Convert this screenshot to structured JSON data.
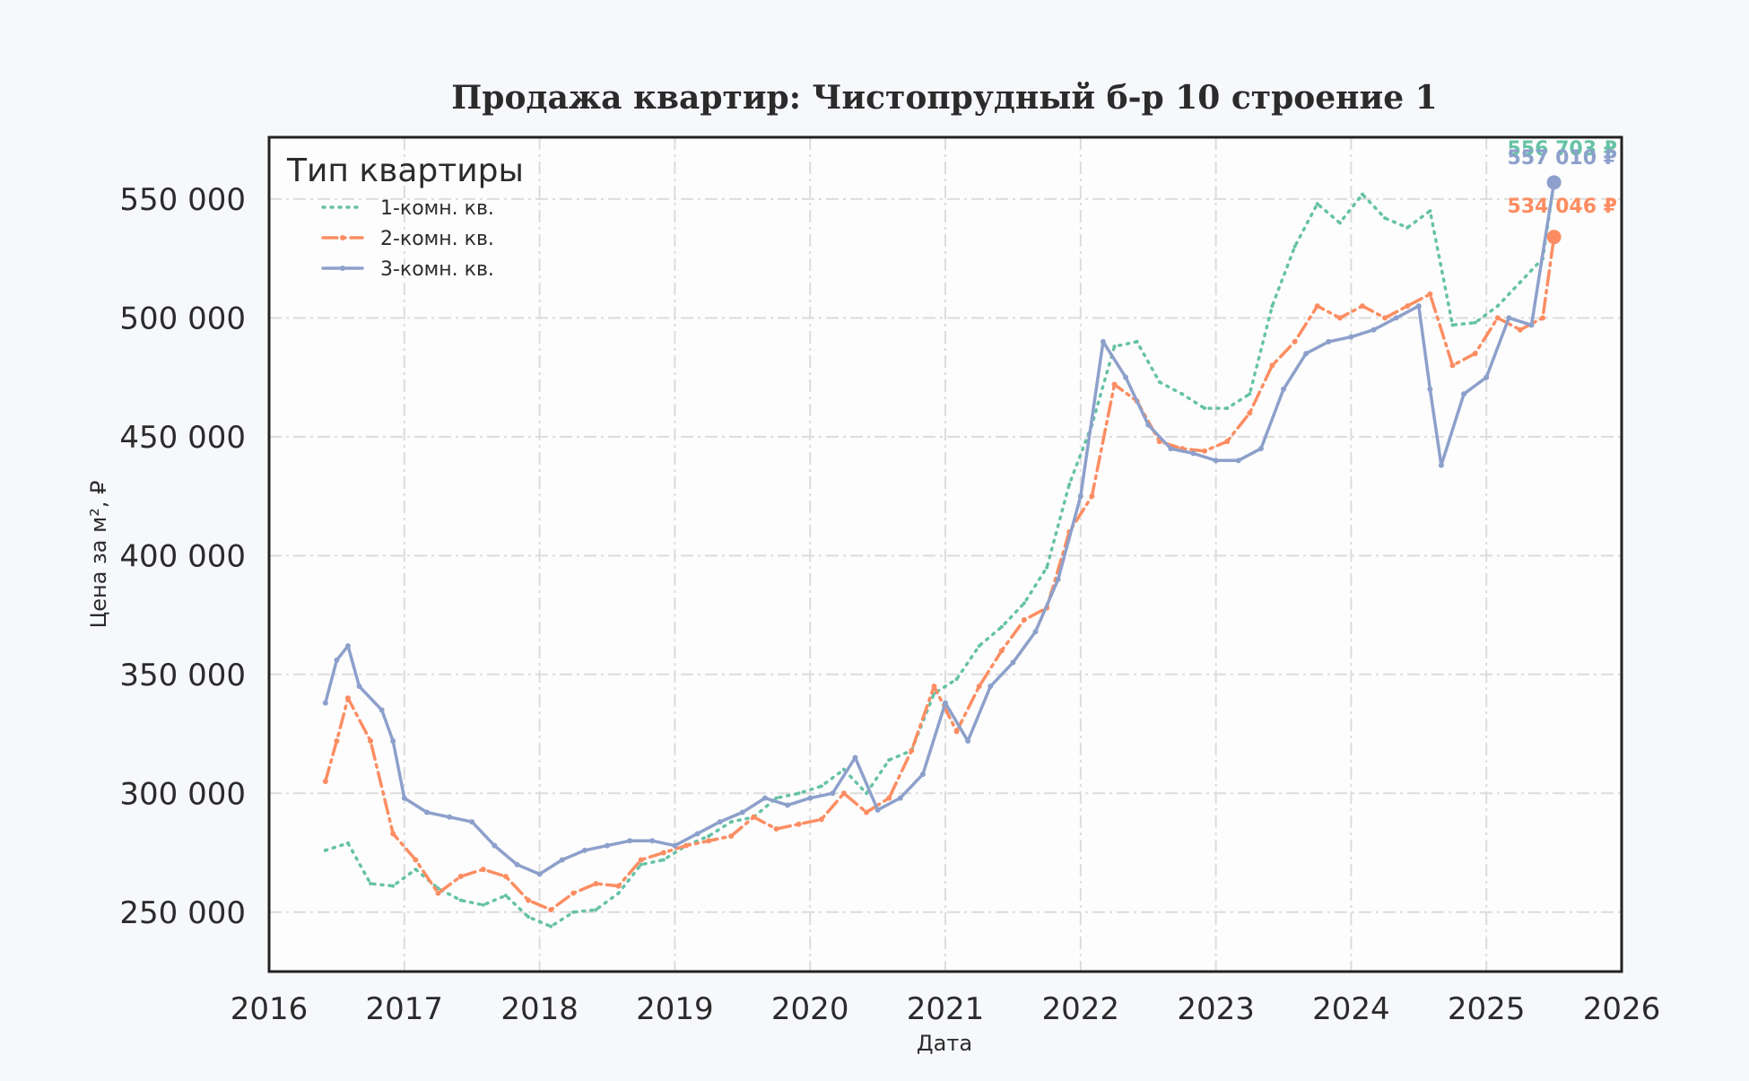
{
  "chart_data": {
    "type": "line",
    "title": "Продажа квартир: Чистопрудный б-р 10 строение 1",
    "xlabel": "Дата",
    "ylabel": "Цена за м², ₽",
    "xlim": [
      "2016-01-01",
      "2026-01-01"
    ],
    "ylim": [
      225000,
      576000
    ],
    "x_ticks": [
      "2016",
      "2017",
      "2018",
      "2019",
      "2020",
      "2021",
      "2022",
      "2023",
      "2024",
      "2025",
      "2026"
    ],
    "y_ticks": [
      {
        "value": 250000,
        "label": "250 000"
      },
      {
        "value": 300000,
        "label": "300 000"
      },
      {
        "value": 350000,
        "label": "350 000"
      },
      {
        "value": 400000,
        "label": "400 000"
      },
      {
        "value": 450000,
        "label": "450 000"
      },
      {
        "value": 500000,
        "label": "500 000"
      },
      {
        "value": 550000,
        "label": "550 000"
      }
    ],
    "grid": true,
    "legend": {
      "title": "Тип квартиры",
      "position": "top-left"
    },
    "series": [
      {
        "name": "1-комн. кв.",
        "color": "#66c2a5",
        "style": "dotted",
        "x": [
          "2016-06",
          "2016-08",
          "2016-10",
          "2016-12",
          "2017-02",
          "2017-04",
          "2017-06",
          "2017-08",
          "2017-10",
          "2017-12",
          "2018-02",
          "2018-04",
          "2018-06",
          "2018-08",
          "2018-10",
          "2018-12",
          "2019-02",
          "2019-04",
          "2019-06",
          "2019-08",
          "2019-10",
          "2019-12",
          "2020-02",
          "2020-04",
          "2020-06",
          "2020-08",
          "2020-10",
          "2020-12",
          "2021-02",
          "2021-04",
          "2021-06",
          "2021-08",
          "2021-10",
          "2021-12",
          "2022-02",
          "2022-04",
          "2022-06",
          "2022-08",
          "2022-10",
          "2022-12",
          "2023-02",
          "2023-04",
          "2023-06",
          "2023-08",
          "2023-10",
          "2023-12",
          "2024-02",
          "2024-04",
          "2024-06",
          "2024-08",
          "2024-10",
          "2024-12",
          "2025-02",
          "2025-04",
          "2025-06",
          "2025-07"
        ],
        "values": [
          276000,
          279000,
          262000,
          261000,
          268000,
          260000,
          255000,
          253000,
          257000,
          248000,
          244000,
          250000,
          251000,
          258000,
          270000,
          272000,
          278000,
          282000,
          288000,
          290000,
          298000,
          300000,
          303000,
          310000,
          300000,
          314000,
          318000,
          342000,
          348000,
          362000,
          370000,
          380000,
          395000,
          430000,
          455000,
          488000,
          490000,
          473000,
          468000,
          462000,
          462000,
          468000,
          505000,
          530000,
          548000,
          540000,
          552000,
          542000,
          538000,
          545000,
          497000,
          498000,
          505000,
          515000,
          525000,
          556703
        ]
      },
      {
        "name": "2-комн. кв.",
        "color": "#fc8d62",
        "style": "dash-dot",
        "x": [
          "2016-06",
          "2016-07",
          "2016-08",
          "2016-10",
          "2016-12",
          "2017-02",
          "2017-04",
          "2017-06",
          "2017-08",
          "2017-10",
          "2017-12",
          "2018-02",
          "2018-04",
          "2018-06",
          "2018-08",
          "2018-10",
          "2018-12",
          "2019-02",
          "2019-04",
          "2019-06",
          "2019-08",
          "2019-10",
          "2019-12",
          "2020-02",
          "2020-04",
          "2020-06",
          "2020-08",
          "2020-10",
          "2020-12",
          "2021-02",
          "2021-04",
          "2021-06",
          "2021-08",
          "2021-10",
          "2021-12",
          "2022-02",
          "2022-04",
          "2022-06",
          "2022-08",
          "2022-10",
          "2022-12",
          "2023-02",
          "2023-04",
          "2023-06",
          "2023-08",
          "2023-10",
          "2023-12",
          "2024-02",
          "2024-04",
          "2024-06",
          "2024-08",
          "2024-10",
          "2024-12",
          "2025-02",
          "2025-04",
          "2025-06",
          "2025-07"
        ],
        "values": [
          305000,
          322000,
          340000,
          322000,
          283000,
          272000,
          258000,
          265000,
          268000,
          265000,
          255000,
          251000,
          258000,
          262000,
          261000,
          272000,
          275000,
          278000,
          280000,
          282000,
          290000,
          285000,
          287000,
          289000,
          300000,
          292000,
          298000,
          318000,
          345000,
          326000,
          345000,
          360000,
          373000,
          378000,
          410000,
          425000,
          472000,
          465000,
          448000,
          445000,
          444000,
          448000,
          460000,
          480000,
          490000,
          505000,
          500000,
          505000,
          500000,
          505000,
          510000,
          480000,
          485000,
          500000,
          495000,
          500000,
          534046
        ]
      },
      {
        "name": "3-комн. кв.",
        "color": "#8da0cb",
        "style": "solid-marker",
        "x": [
          "2016-06",
          "2016-07",
          "2016-08",
          "2016-09",
          "2016-11",
          "2016-12",
          "2017-01",
          "2017-03",
          "2017-05",
          "2017-07",
          "2017-09",
          "2017-11",
          "2018-01",
          "2018-03",
          "2018-05",
          "2018-07",
          "2018-09",
          "2018-11",
          "2019-01",
          "2019-03",
          "2019-05",
          "2019-07",
          "2019-09",
          "2019-11",
          "2020-01",
          "2020-03",
          "2020-05",
          "2020-07",
          "2020-09",
          "2020-11",
          "2021-01",
          "2021-03",
          "2021-05",
          "2021-07",
          "2021-09",
          "2021-11",
          "2022-01",
          "2022-03",
          "2022-05",
          "2022-07",
          "2022-09",
          "2022-11",
          "2023-01",
          "2023-03",
          "2023-05",
          "2023-07",
          "2023-09",
          "2023-11",
          "2024-01",
          "2024-03",
          "2024-05",
          "2024-07",
          "2024-08",
          "2024-09",
          "2024-11",
          "2025-01",
          "2025-03",
          "2025-05",
          "2025-07"
        ],
        "values": [
          338000,
          356000,
          362000,
          345000,
          335000,
          322000,
          298000,
          292000,
          290000,
          288000,
          278000,
          270000,
          266000,
          272000,
          276000,
          278000,
          280000,
          280000,
          278000,
          283000,
          288000,
          292000,
          298000,
          295000,
          298000,
          300000,
          315000,
          293000,
          298000,
          308000,
          338000,
          322000,
          345000,
          355000,
          368000,
          390000,
          425000,
          490000,
          475000,
          455000,
          445000,
          443000,
          440000,
          440000,
          445000,
          470000,
          485000,
          490000,
          492000,
          495000,
          500000,
          505000,
          470000,
          438000,
          468000,
          475000,
          500000,
          497000,
          557010
        ]
      }
    ],
    "end_labels": [
      {
        "series": "1-комн. кв.",
        "text": "556 703 ₽"
      },
      {
        "series": "2-комн. кв.",
        "text": "534 046 ₽"
      },
      {
        "series": "3-комн. кв.",
        "text": "557 010 ₽"
      }
    ]
  }
}
